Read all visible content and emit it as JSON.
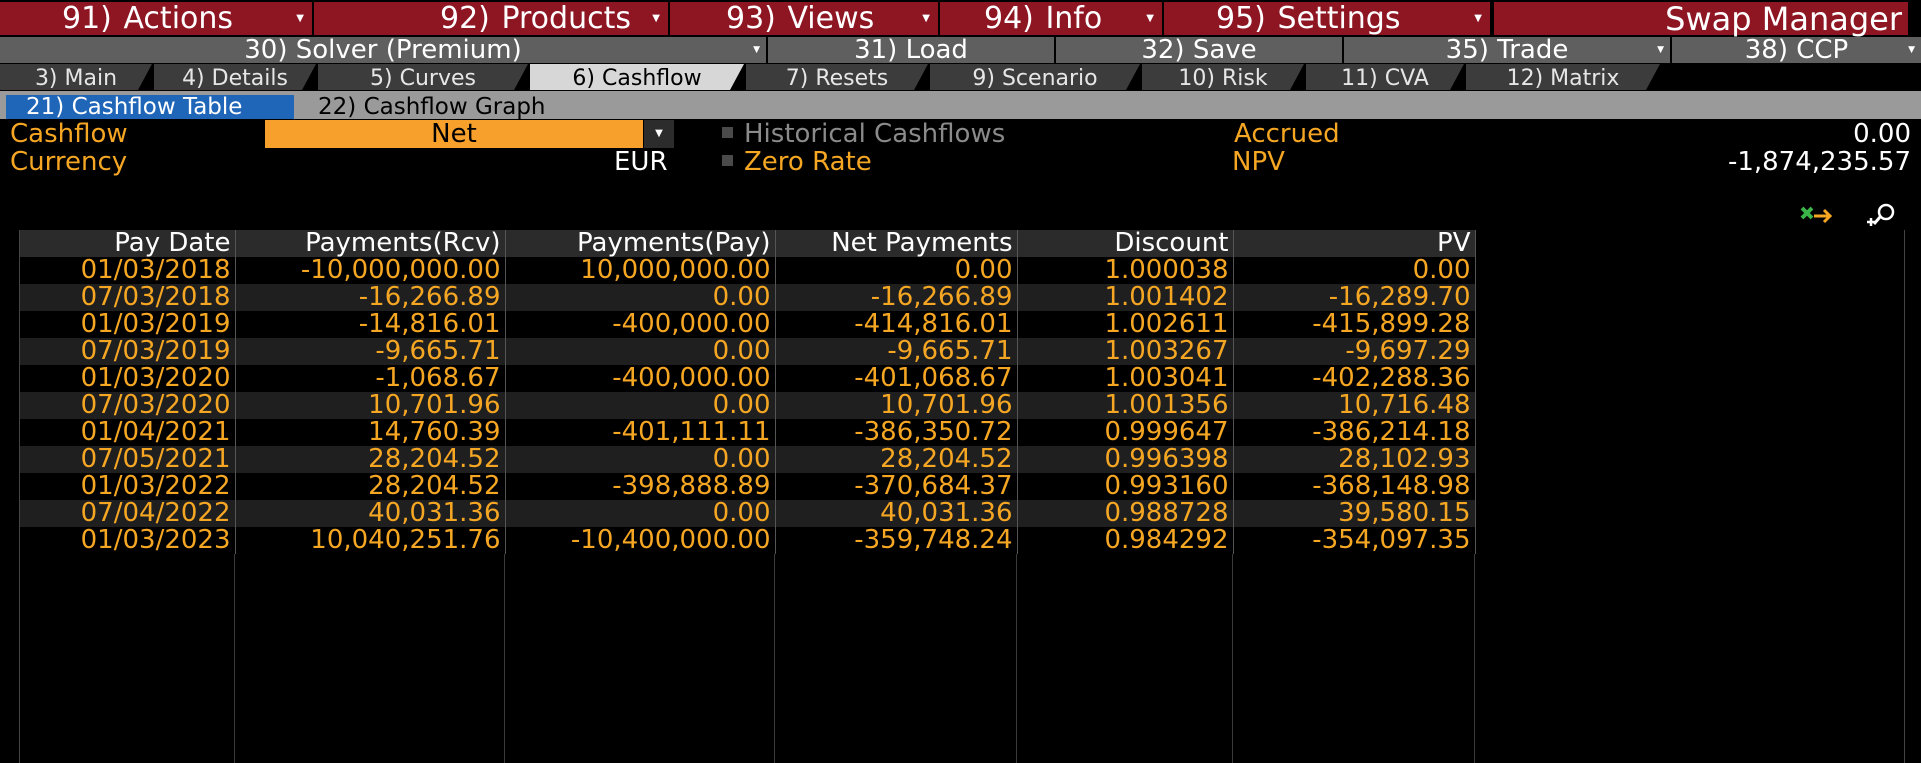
{
  "menu": [
    {
      "num": "91)",
      "label": "Actions"
    },
    {
      "num": "92)",
      "label": "Products"
    },
    {
      "num": "93)",
      "label": "Views"
    },
    {
      "num": "94)",
      "label": "Info"
    },
    {
      "num": "95)",
      "label": "Settings"
    }
  ],
  "app_title": "Swap Manager",
  "subbar": [
    {
      "num": "30)",
      "label": "Solver (Premium)"
    },
    {
      "num": "31)",
      "label": "Load"
    },
    {
      "num": "32)",
      "label": "Save"
    },
    {
      "num": "35)",
      "label": "Trade"
    },
    {
      "num": "38)",
      "label": "CCP"
    }
  ],
  "tabs": [
    {
      "num": "3)",
      "label": "Main"
    },
    {
      "num": "4)",
      "label": "Details"
    },
    {
      "num": "5)",
      "label": "Curves"
    },
    {
      "num": "6)",
      "label": "Cashflow"
    },
    {
      "num": "7)",
      "label": "Resets"
    },
    {
      "num": "9)",
      "label": "Scenario"
    },
    {
      "num": "10)",
      "label": "Risk"
    },
    {
      "num": "11)",
      "label": "CVA"
    },
    {
      "num": "12)",
      "label": "Matrix"
    }
  ],
  "views": [
    {
      "num": "21)",
      "label": "Cashflow Table"
    },
    {
      "num": "22)",
      "label": "Cashflow Graph"
    }
  ],
  "fields": {
    "cashflow_label": "Cashflow",
    "cashflow_value": "Net",
    "currency_label": "Currency",
    "currency_value": "EUR",
    "historical_label": "Historical Cashflows",
    "zero_rate_label": "Zero Rate",
    "accrued_label": "Accrued",
    "accrued_value": "0.00",
    "npv_label": "NPV",
    "npv_value": "-1,874,235.57"
  },
  "table": {
    "headers": [
      "Pay Date",
      "Payments(Rcv)",
      "Payments(Pay)",
      "Net Payments",
      "Discount",
      "PV"
    ],
    "rows": [
      [
        "01/03/2018",
        "-10,000,000.00",
        "10,000,000.00",
        "0.00",
        "1.000038",
        "0.00"
      ],
      [
        "07/03/2018",
        "-16,266.89",
        "0.00",
        "-16,266.89",
        "1.001402",
        "-16,289.70"
      ],
      [
        "01/03/2019",
        "-14,816.01",
        "-400,000.00",
        "-414,816.01",
        "1.002611",
        "-415,899.28"
      ],
      [
        "07/03/2019",
        "-9,665.71",
        "0.00",
        "-9,665.71",
        "1.003267",
        "-9,697.29"
      ],
      [
        "01/03/2020",
        "-1,068.67",
        "-400,000.00",
        "-401,068.67",
        "1.003041",
        "-402,288.36"
      ],
      [
        "07/03/2020",
        "10,701.96",
        "0.00",
        "10,701.96",
        "1.001356",
        "10,716.48"
      ],
      [
        "01/04/2021",
        "14,760.39",
        "-401,111.11",
        "-386,350.72",
        "0.999647",
        "-386,214.18"
      ],
      [
        "07/05/2021",
        "28,204.52",
        "0.00",
        "28,204.52",
        "0.996398",
        "28,102.93"
      ],
      [
        "01/03/2022",
        "28,204.52",
        "-398,888.89",
        "-370,684.37",
        "0.993160",
        "-368,148.98"
      ],
      [
        "07/04/2022",
        "40,031.36",
        "0.00",
        "40,031.36",
        "0.988728",
        "39,580.15"
      ],
      [
        "01/03/2023",
        "10,040,251.76",
        "-10,400,000.00",
        "-359,748.24",
        "0.984292",
        "-354,097.35"
      ]
    ]
  },
  "colors": {
    "menu_bg": "#8e1522",
    "accent_orange": "#f5a623",
    "active_view": "#1f65b8"
  },
  "icons": [
    "export-excel-icon",
    "zoom-icon"
  ]
}
